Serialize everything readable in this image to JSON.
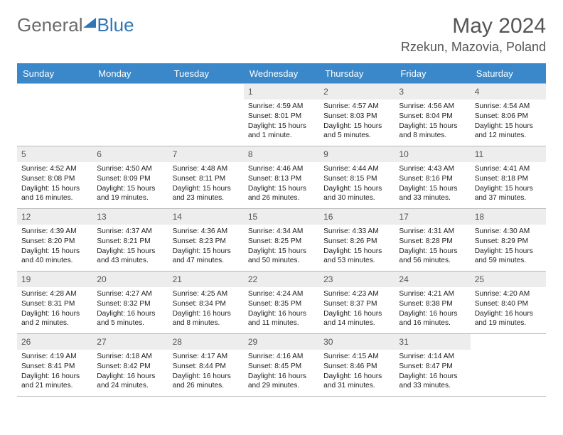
{
  "brand": {
    "part1": "General",
    "part2": "Blue"
  },
  "title": "May 2024",
  "location": "Rzekun, Mazovia, Poland",
  "colors": {
    "header_bg": "#3a88c9",
    "header_text": "#ffffff",
    "daynum_bg": "#ededed",
    "border": "#b8b8b8",
    "logo_gray": "#6b6b6b",
    "logo_blue": "#2f76b8"
  },
  "weekdays": [
    "Sunday",
    "Monday",
    "Tuesday",
    "Wednesday",
    "Thursday",
    "Friday",
    "Saturday"
  ],
  "weeks": [
    [
      {
        "day": "",
        "sunrise": "",
        "sunset": "",
        "daylight": ""
      },
      {
        "day": "",
        "sunrise": "",
        "sunset": "",
        "daylight": ""
      },
      {
        "day": "",
        "sunrise": "",
        "sunset": "",
        "daylight": ""
      },
      {
        "day": "1",
        "sunrise": "Sunrise: 4:59 AM",
        "sunset": "Sunset: 8:01 PM",
        "daylight": "Daylight: 15 hours and 1 minute."
      },
      {
        "day": "2",
        "sunrise": "Sunrise: 4:57 AM",
        "sunset": "Sunset: 8:03 PM",
        "daylight": "Daylight: 15 hours and 5 minutes."
      },
      {
        "day": "3",
        "sunrise": "Sunrise: 4:56 AM",
        "sunset": "Sunset: 8:04 PM",
        "daylight": "Daylight: 15 hours and 8 minutes."
      },
      {
        "day": "4",
        "sunrise": "Sunrise: 4:54 AM",
        "sunset": "Sunset: 8:06 PM",
        "daylight": "Daylight: 15 hours and 12 minutes."
      }
    ],
    [
      {
        "day": "5",
        "sunrise": "Sunrise: 4:52 AM",
        "sunset": "Sunset: 8:08 PM",
        "daylight": "Daylight: 15 hours and 16 minutes."
      },
      {
        "day": "6",
        "sunrise": "Sunrise: 4:50 AM",
        "sunset": "Sunset: 8:09 PM",
        "daylight": "Daylight: 15 hours and 19 minutes."
      },
      {
        "day": "7",
        "sunrise": "Sunrise: 4:48 AM",
        "sunset": "Sunset: 8:11 PM",
        "daylight": "Daylight: 15 hours and 23 minutes."
      },
      {
        "day": "8",
        "sunrise": "Sunrise: 4:46 AM",
        "sunset": "Sunset: 8:13 PM",
        "daylight": "Daylight: 15 hours and 26 minutes."
      },
      {
        "day": "9",
        "sunrise": "Sunrise: 4:44 AM",
        "sunset": "Sunset: 8:15 PM",
        "daylight": "Daylight: 15 hours and 30 minutes."
      },
      {
        "day": "10",
        "sunrise": "Sunrise: 4:43 AM",
        "sunset": "Sunset: 8:16 PM",
        "daylight": "Daylight: 15 hours and 33 minutes."
      },
      {
        "day": "11",
        "sunrise": "Sunrise: 4:41 AM",
        "sunset": "Sunset: 8:18 PM",
        "daylight": "Daylight: 15 hours and 37 minutes."
      }
    ],
    [
      {
        "day": "12",
        "sunrise": "Sunrise: 4:39 AM",
        "sunset": "Sunset: 8:20 PM",
        "daylight": "Daylight: 15 hours and 40 minutes."
      },
      {
        "day": "13",
        "sunrise": "Sunrise: 4:37 AM",
        "sunset": "Sunset: 8:21 PM",
        "daylight": "Daylight: 15 hours and 43 minutes."
      },
      {
        "day": "14",
        "sunrise": "Sunrise: 4:36 AM",
        "sunset": "Sunset: 8:23 PM",
        "daylight": "Daylight: 15 hours and 47 minutes."
      },
      {
        "day": "15",
        "sunrise": "Sunrise: 4:34 AM",
        "sunset": "Sunset: 8:25 PM",
        "daylight": "Daylight: 15 hours and 50 minutes."
      },
      {
        "day": "16",
        "sunrise": "Sunrise: 4:33 AM",
        "sunset": "Sunset: 8:26 PM",
        "daylight": "Daylight: 15 hours and 53 minutes."
      },
      {
        "day": "17",
        "sunrise": "Sunrise: 4:31 AM",
        "sunset": "Sunset: 8:28 PM",
        "daylight": "Daylight: 15 hours and 56 minutes."
      },
      {
        "day": "18",
        "sunrise": "Sunrise: 4:30 AM",
        "sunset": "Sunset: 8:29 PM",
        "daylight": "Daylight: 15 hours and 59 minutes."
      }
    ],
    [
      {
        "day": "19",
        "sunrise": "Sunrise: 4:28 AM",
        "sunset": "Sunset: 8:31 PM",
        "daylight": "Daylight: 16 hours and 2 minutes."
      },
      {
        "day": "20",
        "sunrise": "Sunrise: 4:27 AM",
        "sunset": "Sunset: 8:32 PM",
        "daylight": "Daylight: 16 hours and 5 minutes."
      },
      {
        "day": "21",
        "sunrise": "Sunrise: 4:25 AM",
        "sunset": "Sunset: 8:34 PM",
        "daylight": "Daylight: 16 hours and 8 minutes."
      },
      {
        "day": "22",
        "sunrise": "Sunrise: 4:24 AM",
        "sunset": "Sunset: 8:35 PM",
        "daylight": "Daylight: 16 hours and 11 minutes."
      },
      {
        "day": "23",
        "sunrise": "Sunrise: 4:23 AM",
        "sunset": "Sunset: 8:37 PM",
        "daylight": "Daylight: 16 hours and 14 minutes."
      },
      {
        "day": "24",
        "sunrise": "Sunrise: 4:21 AM",
        "sunset": "Sunset: 8:38 PM",
        "daylight": "Daylight: 16 hours and 16 minutes."
      },
      {
        "day": "25",
        "sunrise": "Sunrise: 4:20 AM",
        "sunset": "Sunset: 8:40 PM",
        "daylight": "Daylight: 16 hours and 19 minutes."
      }
    ],
    [
      {
        "day": "26",
        "sunrise": "Sunrise: 4:19 AM",
        "sunset": "Sunset: 8:41 PM",
        "daylight": "Daylight: 16 hours and 21 minutes."
      },
      {
        "day": "27",
        "sunrise": "Sunrise: 4:18 AM",
        "sunset": "Sunset: 8:42 PM",
        "daylight": "Daylight: 16 hours and 24 minutes."
      },
      {
        "day": "28",
        "sunrise": "Sunrise: 4:17 AM",
        "sunset": "Sunset: 8:44 PM",
        "daylight": "Daylight: 16 hours and 26 minutes."
      },
      {
        "day": "29",
        "sunrise": "Sunrise: 4:16 AM",
        "sunset": "Sunset: 8:45 PM",
        "daylight": "Daylight: 16 hours and 29 minutes."
      },
      {
        "day": "30",
        "sunrise": "Sunrise: 4:15 AM",
        "sunset": "Sunset: 8:46 PM",
        "daylight": "Daylight: 16 hours and 31 minutes."
      },
      {
        "day": "31",
        "sunrise": "Sunrise: 4:14 AM",
        "sunset": "Sunset: 8:47 PM",
        "daylight": "Daylight: 16 hours and 33 minutes."
      },
      {
        "day": "",
        "sunrise": "",
        "sunset": "",
        "daylight": ""
      }
    ]
  ]
}
